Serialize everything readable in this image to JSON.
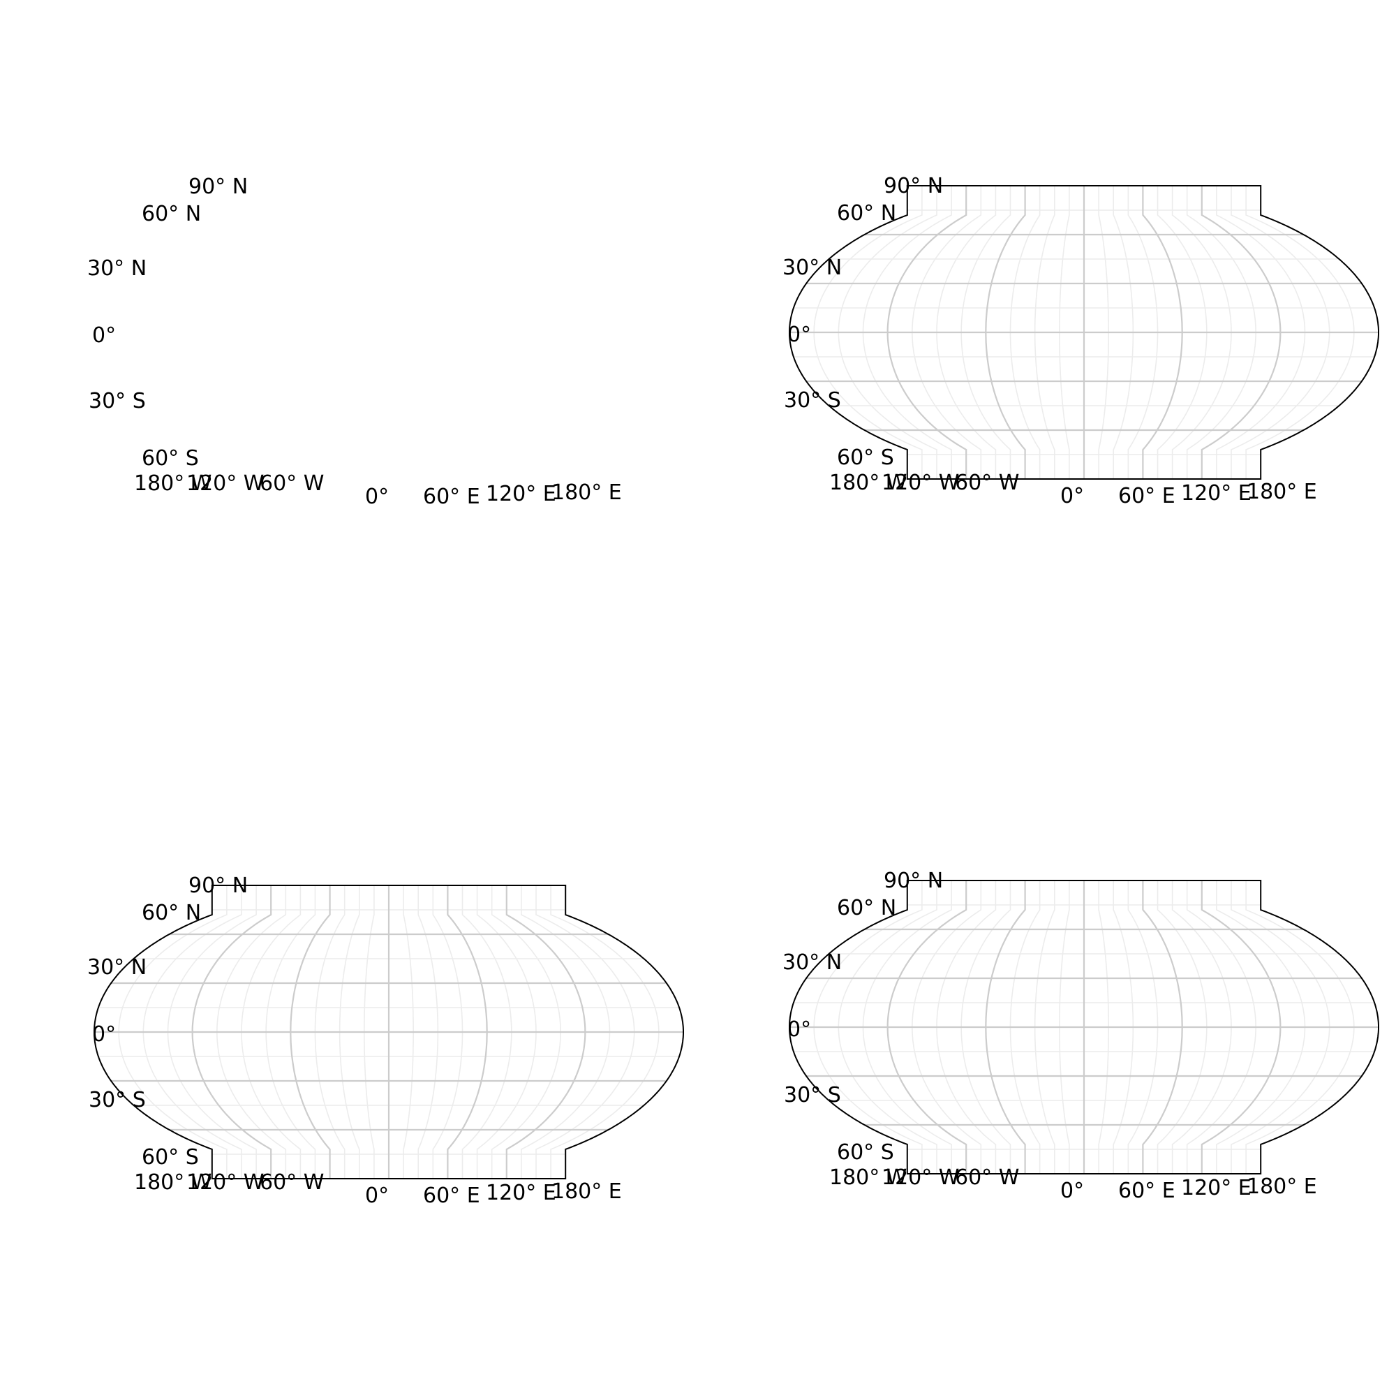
{
  "panels": [
    {
      "id": "top-left",
      "frame_visible": false,
      "lat_labels": [
        "90° N",
        "60° N",
        "30° N",
        "0°",
        "30° S",
        "60° S"
      ],
      "lon_labels": [
        "180° W",
        "120° W",
        "60° W",
        "0°",
        "60° E",
        "120° E",
        "180° E"
      ]
    },
    {
      "id": "top-right",
      "frame_visible": true,
      "lat_labels": [
        "90° N",
        "60° N",
        "30° N",
        "0°",
        "30° S",
        "60° S"
      ],
      "lon_labels": [
        "180° W",
        "120° W",
        "60° W",
        "0°",
        "60° E",
        "120° E",
        "180° E"
      ]
    },
    {
      "id": "bottom-left",
      "frame_visible": true,
      "lat_labels": [
        "90° N",
        "60° N",
        "30° N",
        "0°",
        "30° S",
        "60° S"
      ],
      "lon_labels": [
        "180° W",
        "120° W",
        "60° W",
        "0°",
        "60° E",
        "120° E",
        "180° E"
      ]
    },
    {
      "id": "bottom-right",
      "frame_visible": true,
      "lat_labels": [
        "90° N",
        "60° N",
        "30° N",
        "0°",
        "30° S",
        "60° S"
      ],
      "lon_labels": [
        "180° W",
        "120° W",
        "60° W",
        "0°",
        "60° E",
        "120° E",
        "180° E"
      ]
    }
  ],
  "graticule": {
    "major_lat_deg": [
      90,
      60,
      30,
      0,
      -30,
      -60,
      -90
    ],
    "major_lon_deg": [
      -180,
      -120,
      -60,
      0,
      60,
      120,
      180
    ],
    "minor_step_deg": 15,
    "major_color": "#cccccc",
    "minor_color": "#ececec",
    "boundary_color": "#000000"
  }
}
